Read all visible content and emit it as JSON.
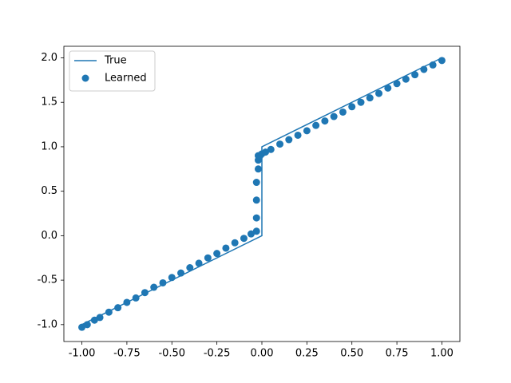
{
  "chart_data": {
    "type": "line",
    "series": [
      {
        "name": "True",
        "type": "line",
        "color": "#1f77b4",
        "x": [
          -1,
          0,
          0,
          1
        ],
        "values": [
          -1,
          0,
          1,
          2
        ]
      },
      {
        "name": "Learned",
        "type": "scatter",
        "color": "#1f77b4",
        "x": [
          -1.0,
          -0.97,
          -0.93,
          -0.9,
          -0.85,
          -0.8,
          -0.75,
          -0.7,
          -0.65,
          -0.6,
          -0.55,
          -0.5,
          -0.45,
          -0.4,
          -0.35,
          -0.3,
          -0.25,
          -0.2,
          -0.15,
          -0.1,
          -0.06,
          -0.03,
          -0.03,
          -0.03,
          -0.03,
          -0.02,
          -0.02,
          -0.02,
          -0.01,
          0.0,
          0.02,
          0.05,
          0.1,
          0.15,
          0.2,
          0.25,
          0.3,
          0.35,
          0.4,
          0.45,
          0.5,
          0.55,
          0.6,
          0.65,
          0.7,
          0.75,
          0.8,
          0.85,
          0.9,
          0.95,
          1.0
        ],
        "values": [
          -1.03,
          -1.0,
          -0.95,
          -0.92,
          -0.86,
          -0.81,
          -0.75,
          -0.7,
          -0.64,
          -0.58,
          -0.53,
          -0.47,
          -0.42,
          -0.36,
          -0.31,
          -0.25,
          -0.2,
          -0.14,
          -0.08,
          -0.03,
          0.02,
          0.05,
          0.2,
          0.4,
          0.6,
          0.75,
          0.85,
          0.9,
          0.9,
          0.92,
          0.94,
          0.97,
          1.03,
          1.08,
          1.13,
          1.18,
          1.24,
          1.29,
          1.34,
          1.39,
          1.45,
          1.5,
          1.55,
          1.6,
          1.66,
          1.71,
          1.76,
          1.81,
          1.87,
          1.92,
          1.97
        ]
      }
    ],
    "xlim": [
      -1.1,
      1.1
    ],
    "xticks": [
      {
        "value": -1,
        "label": "-1.00"
      },
      {
        "value": -0.75,
        "label": "-0.75"
      },
      {
        "value": -0.5,
        "label": "-0.50"
      },
      {
        "value": -0.25,
        "label": "-0.25"
      },
      {
        "value": 0,
        "label": "0.00"
      },
      {
        "value": 0.25,
        "label": "0.25"
      },
      {
        "value": 0.5,
        "label": "0.50"
      },
      {
        "value": 0.75,
        "label": "0.75"
      },
      {
        "value": 1,
        "label": "1.00"
      }
    ],
    "ylim": [
      -1.19,
      2.13
    ],
    "yticks": [
      {
        "value": -1,
        "label": "-1.0"
      },
      {
        "value": -0.5,
        "label": "-0.5"
      },
      {
        "value": 0,
        "label": "0.0"
      },
      {
        "value": 0.5,
        "label": "0.5"
      },
      {
        "value": 1,
        "label": "1.0"
      },
      {
        "value": 1.5,
        "label": "1.5"
      },
      {
        "value": 2,
        "label": "2.0"
      }
    ],
    "grid": false,
    "legend": "upper-left"
  }
}
